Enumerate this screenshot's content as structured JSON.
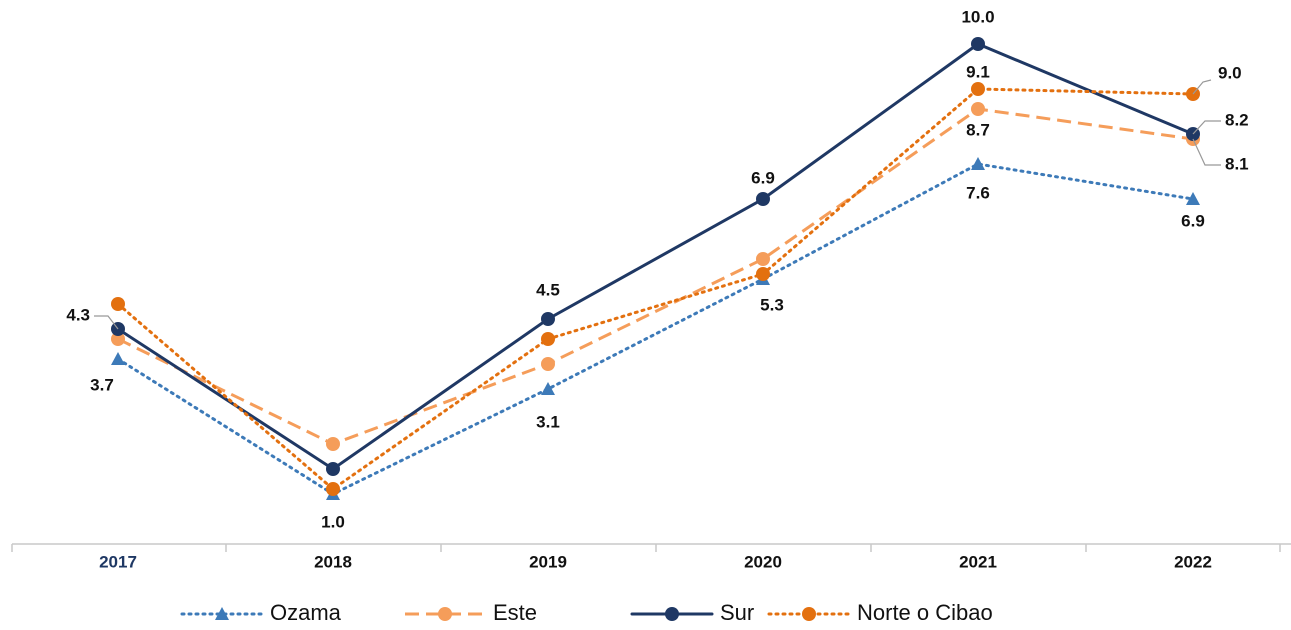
{
  "chart_data": {
    "type": "line",
    "categories": [
      "2017",
      "2018",
      "2019",
      "2020",
      "2021",
      "2022"
    ],
    "ylim": [
      0,
      11
    ],
    "series": [
      {
        "name": "Ozama",
        "color": "#3d7ab8",
        "dash": "dotted",
        "marker": "triangle",
        "values": [
          3.7,
          1.0,
          3.1,
          5.3,
          7.6,
          6.9
        ],
        "value_labels": [
          "3.7",
          "1.0",
          "3.1",
          "5.3",
          "7.6",
          "6.9"
        ]
      },
      {
        "name": "Este",
        "color": "#f59d5a",
        "dash": "dashed",
        "marker": "circle",
        "values": [
          4.1,
          2.0,
          3.6,
          5.7,
          8.7,
          8.1
        ],
        "value_labels": [
          null,
          null,
          null,
          null,
          "8.7",
          "8.1"
        ]
      },
      {
        "name": "Sur",
        "color": "#1f3864",
        "dash": "solid",
        "marker": "circle",
        "values": [
          4.3,
          1.5,
          4.5,
          6.9,
          10.0,
          8.2
        ],
        "value_labels": [
          "4.3",
          null,
          "4.5",
          "6.9",
          "10.0",
          "8.2"
        ]
      },
      {
        "name": "Norte o Cibao",
        "color": "#e3700f",
        "dash": "dotted",
        "marker": "circle",
        "values": [
          4.8,
          1.1,
          4.1,
          5.4,
          9.1,
          9.0
        ],
        "value_labels": [
          null,
          null,
          null,
          null,
          "9.1",
          "9.0"
        ]
      }
    ]
  }
}
